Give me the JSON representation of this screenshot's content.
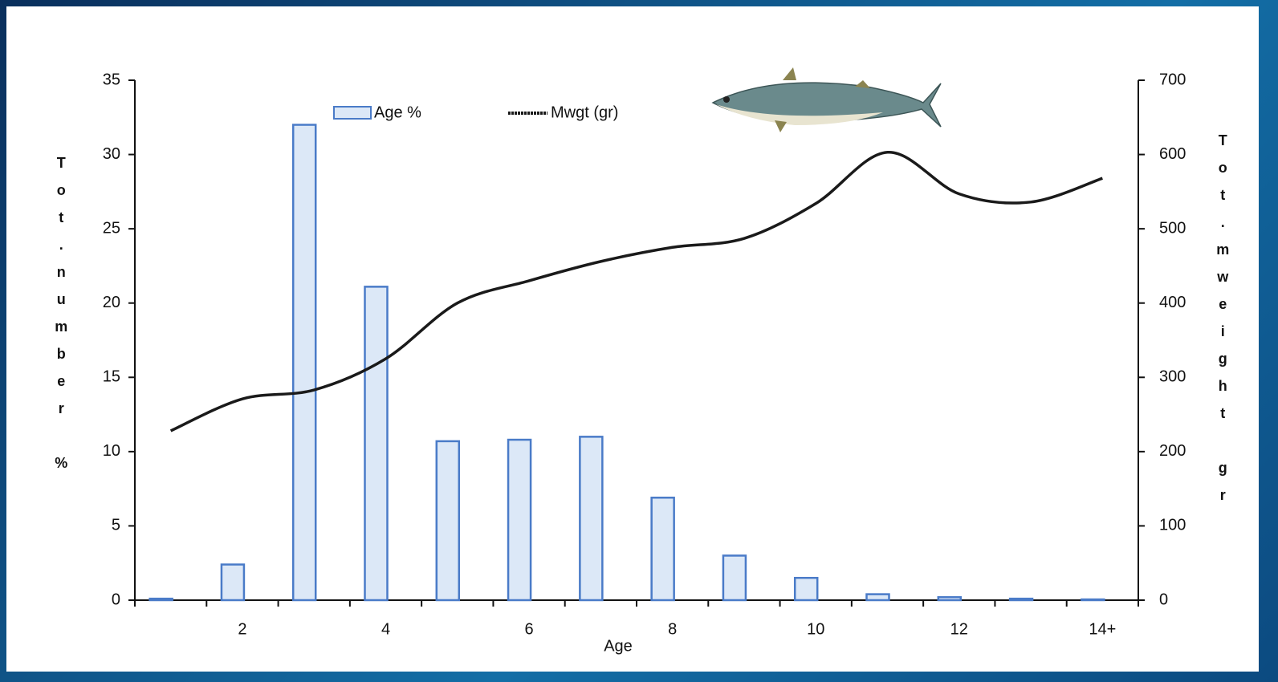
{
  "chart_data": {
    "type": "bar_line",
    "categories": [
      null,
      "2",
      null,
      "4",
      null,
      "6",
      null,
      "8",
      null,
      "10",
      null,
      "12",
      null,
      "14+"
    ],
    "x_label": "Age",
    "y_label": "Tot.number %",
    "y2_label": "Tot.mweight gr",
    "series": [
      {
        "name": "Age %",
        "type": "bar",
        "color": "#dce8f7",
        "values": [
          0.1,
          2.4,
          32,
          21.1,
          10.7,
          10.8,
          11,
          6.9,
          3,
          1.5,
          0.4,
          0.2,
          0.1,
          0.05
        ]
      },
      {
        "name": "Mwgt (gr)",
        "type": "line",
        "color": "#1a1a1a",
        "axis": "y2",
        "values": [
          228,
          271,
          283,
          325,
          400,
          430,
          456,
          475,
          487,
          534,
          603,
          547,
          536,
          568
        ]
      }
    ],
    "ylim": [
      0,
      35
    ],
    "yticks": [
      0,
      5,
      10,
      15,
      20,
      25,
      30,
      35
    ],
    "y2lim": [
      0,
      700
    ],
    "y2ticks": [
      0,
      100,
      200,
      300,
      400,
      500,
      600,
      700
    ]
  }
}
